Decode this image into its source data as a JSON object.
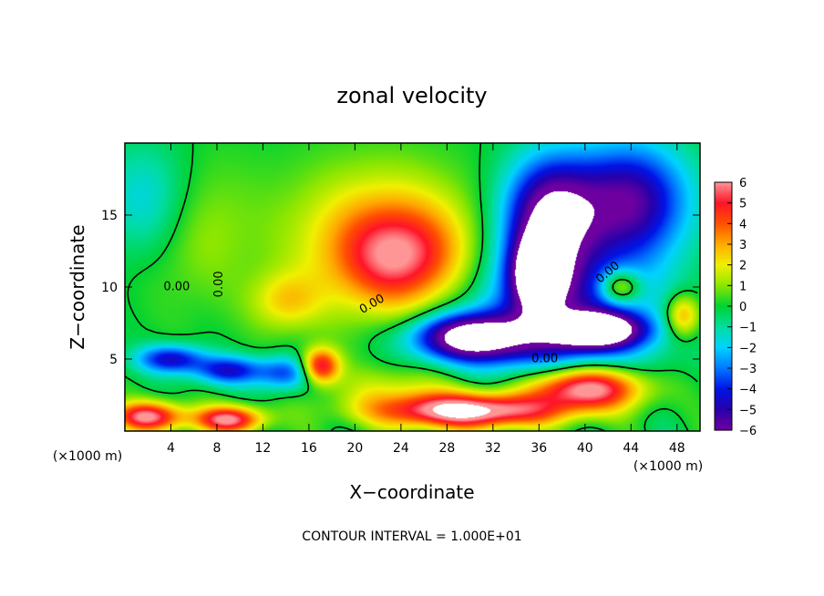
{
  "chart_data": {
    "type": "heatmap",
    "title": "zonal velocity",
    "xlabel": "X−coordinate",
    "ylabel": "Z−coordinate",
    "x_unit_left": "(×1000 m)",
    "x_unit_right": "(×1000 m)",
    "xlim": [
      0,
      50
    ],
    "ylim": [
      0,
      20
    ],
    "x_ticks": [
      4,
      8,
      12,
      16,
      20,
      24,
      28,
      32,
      36,
      40,
      44,
      48
    ],
    "y_ticks": [
      5,
      10,
      15
    ],
    "colorbar_ticks": [
      "6",
      "5",
      "4",
      "3",
      "2",
      "1",
      "0",
      "−1",
      "−2",
      "−3",
      "−4",
      "−5",
      "−6"
    ],
    "colorbar_range": [
      -6,
      6
    ],
    "contour_labels": [
      "0.00",
      "0.00",
      "0.00",
      "0.00",
      "0.00"
    ],
    "footnote": "CONTOUR INTERVAL = 1.000E+01",
    "blobs": [
      {
        "x": 24,
        "z": 12,
        "value": 4.2,
        "sx": 5.5,
        "sz": 3.5
      },
      {
        "x": 22,
        "z": 13.5,
        "value": 2.5,
        "sx": 8,
        "sz": 5
      },
      {
        "x": 14,
        "z": 9,
        "value": 2.2,
        "sx": 3,
        "sz": 2
      },
      {
        "x": 17,
        "z": 4.5,
        "value": 5.5,
        "sx": 1.6,
        "sz": 1.2
      },
      {
        "x": 6,
        "z": 14,
        "value": 1.2,
        "sx": 5,
        "sz": 5
      },
      {
        "x": 2,
        "z": 16,
        "value": -2.0,
        "sx": 4,
        "sz": 4
      },
      {
        "x": 4,
        "z": 5,
        "value": -4.5,
        "sx": 3,
        "sz": 1
      },
      {
        "x": 9,
        "z": 4.2,
        "value": -4.2,
        "sx": 3,
        "sz": 1
      },
      {
        "x": 14,
        "z": 4,
        "value": -3.5,
        "sx": 2.5,
        "sz": 1.2
      },
      {
        "x": 37,
        "z": 15,
        "value": -6.5,
        "sx": 4,
        "sz": 4
      },
      {
        "x": 36,
        "z": 11,
        "value": -7.5,
        "sx": 2.2,
        "sz": 2.5
      },
      {
        "x": 30,
        "z": 6.5,
        "value": -7.5,
        "sx": 5,
        "sz": 1.6
      },
      {
        "x": 41,
        "z": 7,
        "value": -7.5,
        "sx": 4,
        "sz": 1.2
      },
      {
        "x": 44,
        "z": 16,
        "value": -5.5,
        "sx": 5,
        "sz": 4
      },
      {
        "x": 38,
        "z": 8,
        "value": -4.5,
        "sx": 8,
        "sz": 5
      },
      {
        "x": 43,
        "z": 10,
        "value": 4,
        "sx": 1.8,
        "sz": 1.2
      },
      {
        "x": 48.5,
        "z": 8,
        "value": 3.5,
        "sx": 1.5,
        "sz": 1.5
      },
      {
        "x": 40,
        "z": 3,
        "value": 7.5,
        "sx": 5,
        "sz": 1.5
      },
      {
        "x": 30,
        "z": 1.4,
        "value": 7.5,
        "sx": 8,
        "sz": 1.2
      },
      {
        "x": 2,
        "z": 1,
        "value": 6,
        "sx": 3,
        "sz": 1
      },
      {
        "x": 9,
        "z": 0.8,
        "value": 6,
        "sx": 3,
        "sz": 0.9
      },
      {
        "x": 24,
        "z": 3,
        "value": 1.5,
        "sx": 6,
        "sz": 1.5
      }
    ]
  }
}
